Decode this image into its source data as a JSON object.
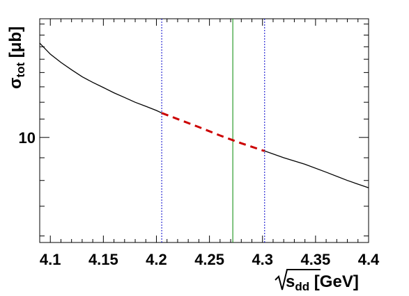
{
  "chart_data": {
    "type": "line",
    "x_scale": "linear",
    "y_scale": "log",
    "xlim": [
      4.09,
      4.4
    ],
    "ylim": [
      5.8,
      18.5
    ],
    "grid": false,
    "legend": "none",
    "xticks": [
      "4.1",
      "4.15",
      "4.2",
      "4.25",
      "4.3",
      "4.35",
      "4.4"
    ],
    "xtick_values": [
      4.1,
      4.15,
      4.2,
      4.25,
      4.3,
      4.35,
      4.4
    ],
    "yticks": [
      "10"
    ],
    "ytick_values": [
      10
    ],
    "xlabel": {
      "prefix": "s",
      "sub": "dd",
      "suffix": " [GeV]"
    },
    "ylabel": {
      "prefix": "σ",
      "sub": "tot",
      "suffix": " [μb]"
    },
    "series": [
      {
        "style": "solid",
        "color": "#000000",
        "x": [
          4.09,
          4.1,
          4.11,
          4.12,
          4.13,
          4.14,
          4.15,
          4.16,
          4.17,
          4.18,
          4.19,
          4.2,
          4.205
        ],
        "y": [
          16.3,
          15.4,
          14.75,
          14.2,
          13.7,
          13.3,
          12.95,
          12.6,
          12.3,
          12.0,
          11.75,
          11.5,
          11.35
        ]
      },
      {
        "style": "dashed",
        "color": "#cc0000",
        "x": [
          4.205,
          4.22,
          4.24,
          4.26,
          4.28,
          4.3,
          4.302
        ],
        "y": [
          11.35,
          11.0,
          10.55,
          10.1,
          9.7,
          9.35,
          9.32
        ]
      },
      {
        "style": "solid",
        "color": "#000000",
        "x": [
          4.302,
          4.32,
          4.34,
          4.36,
          4.38,
          4.4
        ],
        "y": [
          9.32,
          9.0,
          8.7,
          8.35,
          8.0,
          7.7
        ]
      }
    ],
    "vlines": [
      {
        "x": 4.205,
        "color": "#0000cc",
        "style": "dotted"
      },
      {
        "x": 4.272,
        "color": "#008800",
        "style": "solid"
      },
      {
        "x": 4.302,
        "color": "#0000cc",
        "style": "dotted"
      }
    ]
  }
}
